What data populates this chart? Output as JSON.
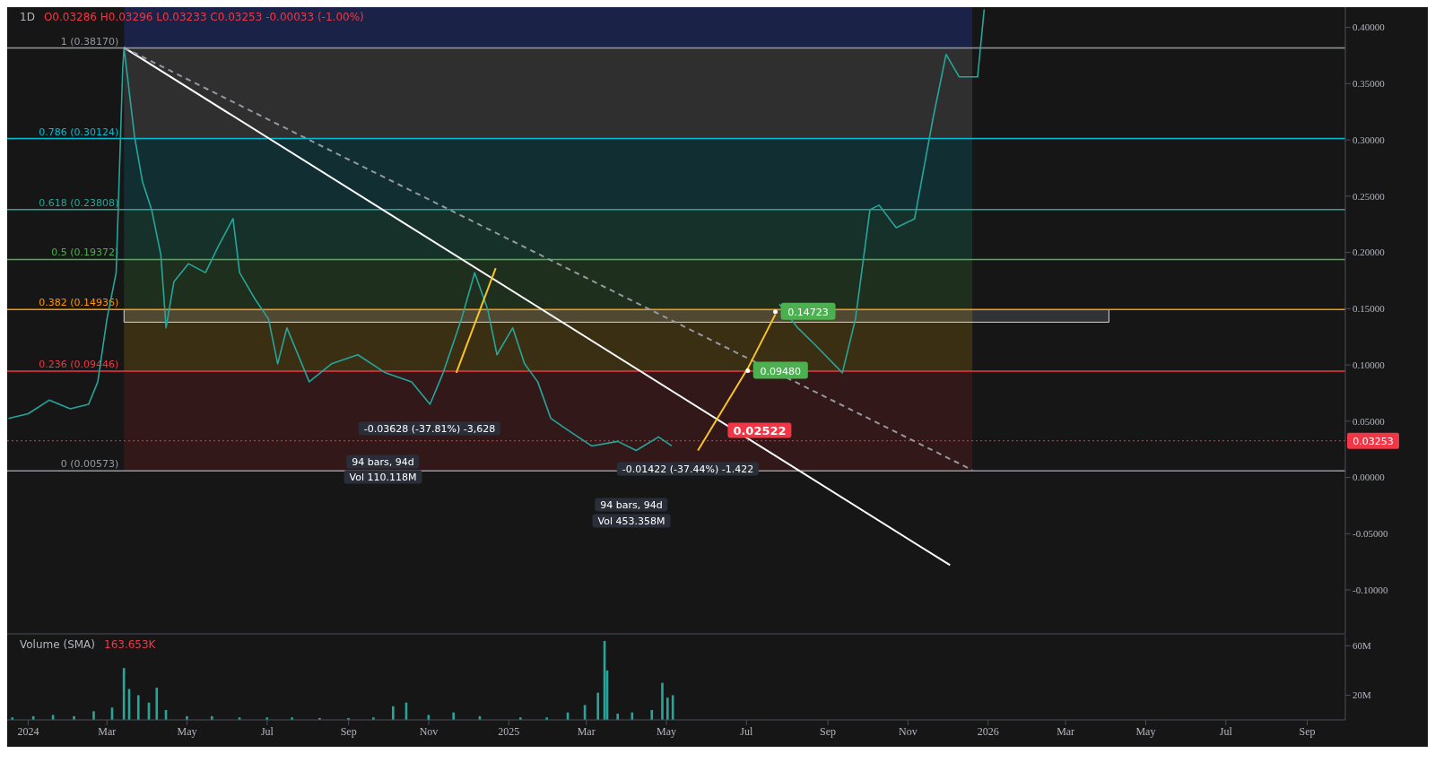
{
  "chart_data": [
    {
      "type": "line",
      "title": "1D",
      "subtitle": "O0.03286 H0.03296 L0.03233 C0.03253 -0.00033 (-1.00%)",
      "xlim": [
        "2023-12-16",
        "2026-09-30"
      ],
      "ylim": [
        -0.139,
        0.418
      ],
      "yticks": [
        {
          "value": -0.1,
          "label": "-0.10000"
        },
        {
          "value": -0.05,
          "label": "-0.05000"
        },
        {
          "value": 0,
          "label": "0.00000"
        },
        {
          "value": 0.05,
          "label": "0.05000"
        },
        {
          "value": 0.1,
          "label": "0.10000"
        },
        {
          "value": 0.15,
          "label": "0.15000"
        },
        {
          "value": 0.2,
          "label": "0.20000"
        },
        {
          "value": 0.25,
          "label": "0.25000"
        },
        {
          "value": 0.3,
          "label": "0.30000"
        },
        {
          "value": 0.35,
          "label": "0.35000"
        },
        {
          "value": 0.4,
          "label": "0.40000"
        }
      ],
      "tick_labels": "y",
      "grid": false,
      "legend": false,
      "marker": "none",
      "series": [
        {
          "color": "#26a69a",
          "x": [
            "2023-12-17",
            "2024-01-01",
            "2024-01-17",
            "2024-02-02",
            "2024-02-16",
            "2024-02-23",
            "2024-03-01",
            "2024-03-08",
            "2024-03-13",
            "2024-03-14",
            "2024-03-22",
            "2024-03-28",
            "2024-04-04",
            "2024-04-11",
            "2024-04-15",
            "2024-04-21",
            "2024-05-02",
            "2024-05-15",
            "2024-05-25",
            "2024-06-05",
            "2024-06-10",
            "2024-06-22",
            "2024-07-02",
            "2024-07-09",
            "2024-07-16",
            "2024-08-02",
            "2024-08-19",
            "2024-09-08",
            "2024-09-29",
            "2024-10-19",
            "2024-11-02",
            "2024-11-12",
            "2024-11-26",
            "2024-12-06",
            "2024-12-16",
            "2024-12-23",
            "2025-01-04",
            "2025-01-13",
            "2025-01-23",
            "2025-02-02",
            "2025-02-12",
            "2025-03-05",
            "2025-03-25",
            "2025-04-08",
            "2025-04-25",
            "2025-05-05",
            "2025-06-15",
            "2025-07-26",
            "2025-08-09",
            "2025-08-23",
            "2025-09-12",
            "2025-09-22",
            "2025-10-03",
            "2025-10-10",
            "2025-10-23",
            "2025-11-06",
            "2025-11-20",
            "2025-11-30",
            "2025-12-10",
            "2025-12-24",
            "2025-12-29"
          ],
          "values": [
            0.0525,
            0.0566,
            0.0687,
            0.061,
            0.065,
            0.085,
            0.141,
            0.182,
            0.364,
            0.382,
            0.303,
            0.263,
            0.238,
            0.198,
            0.133,
            0.174,
            0.19,
            0.182,
            0.206,
            0.23,
            0.182,
            0.158,
            0.141,
            0.101,
            0.133,
            0.085,
            0.101,
            0.109,
            0.093,
            0.085,
            0.065,
            0.093,
            0.141,
            0.182,
            0.149,
            0.109,
            0.133,
            0.101,
            0.085,
            0.0525,
            0.0444,
            0.028,
            0.032,
            0.024,
            0.036,
            0.028,
            null,
            0.154,
            0.133,
            0.117,
            0.093,
            0.141,
            0.238,
            0.242,
            0.222,
            0.23,
            0.319,
            0.376,
            0.356,
            0.356,
            0.416
          ]
        },
        {
          "color": "#ffffff",
          "x": [
            "2024-03-14",
            "2025-12-03"
          ],
          "values": [
            0.382,
            -0.078
          ]
        },
        {
          "color": "#9598a1",
          "line_style": "dashed",
          "x": [
            "2024-03-14",
            "2025-12-20"
          ],
          "values": [
            0.382,
            0.0065
          ]
        },
        {
          "color": "#f7c325",
          "x": [
            "2024-11-22",
            "2024-12-22"
          ],
          "values": [
            0.093,
            0.186
          ]
        },
        {
          "color": "#f7c325",
          "x": [
            "2025-05-25",
            "2025-07-02",
            "2025-07-23"
          ],
          "values": [
            0.024,
            0.097,
            0.145
          ]
        }
      ],
      "bands": [
        {
          "axis": "y",
          "from": 0.3817,
          "to": 0.418,
          "color": "#1c2a5c"
        },
        {
          "axis": "y",
          "from": 0.30124,
          "to": 0.3817,
          "color": "#3a3a3a"
        },
        {
          "axis": "y",
          "from": 0.23808,
          "to": 0.30124,
          "color": "#0f3a40"
        },
        {
          "axis": "y",
          "from": 0.19372,
          "to": 0.23808,
          "color": "#153d33"
        },
        {
          "axis": "y",
          "from": 0.14936,
          "to": 0.19372,
          "color": "#243a22"
        },
        {
          "axis": "y",
          "from": 0.09446,
          "to": 0.14936,
          "color": "#4a3a12"
        },
        {
          "axis": "y",
          "from": 0.00573,
          "to": 0.09446,
          "color": "#40191c"
        },
        {
          "axis": "y",
          "from": 0.138,
          "to": 0.149,
          "color": "#d1d4dc"
        }
      ],
      "ref_lines": [
        {
          "axis": "y",
          "value": 0.3817,
          "label": "1 (0.38170)",
          "color": "#9598a1"
        },
        {
          "axis": "y",
          "value": 0.30124,
          "label": "0.786 (0.30124)",
          "color": "#00bcd4"
        },
        {
          "axis": "y",
          "value": 0.23808,
          "label": "0.618 (0.23808)",
          "color": "#26a69a"
        },
        {
          "axis": "y",
          "value": 0.19372,
          "label": "0.5 (0.19372)",
          "color": "#4caf50"
        },
        {
          "axis": "y",
          "value": 0.14936,
          "label": "0.382 (0.14936)",
          "color": "#ff9800"
        },
        {
          "axis": "y",
          "value": 0.09446,
          "label": "0.236 (0.09446)",
          "color": "#f23645"
        },
        {
          "axis": "y",
          "value": 0.00573,
          "label": "0 (0.00573)",
          "color": "#9598a1"
        },
        {
          "axis": "y",
          "value": 0.03253,
          "label": "0.03253",
          "color": "#f23645",
          "line_style": "dotted"
        }
      ],
      "annotations": [
        {
          "text": "0.14723",
          "x": "2025-07-23",
          "y": 0.14723
        },
        {
          "text": "0.09480",
          "x": "2025-07-02",
          "y": 0.0948
        },
        "0.02522",
        "-0.03628 (-37.81%) -3,628",
        "94 bars, 94d",
        "Vol 110.118M",
        "-0.01422 (-37.44%) -1.422",
        "94 bars, 94d",
        "Vol 453.358M"
      ]
    },
    {
      "type": "bar",
      "title": "Volume (SMA)",
      "annotations": [
        "163.653K"
      ],
      "xlim": [
        "2023-12-16",
        "2026-09-30"
      ],
      "ylim": [
        0,
        69000000
      ],
      "yticks": [
        {
          "value": 20000000,
          "label": "20M"
        },
        {
          "value": 60000000,
          "label": "60M"
        }
      ],
      "xticks": [
        {
          "value": "2024-01-01",
          "label": "2024"
        },
        {
          "value": "2024-03-01",
          "label": "Mar"
        },
        {
          "value": "2024-05-01",
          "label": "May"
        },
        {
          "value": "2024-07-01",
          "label": "Jul"
        },
        {
          "value": "2024-09-01",
          "label": "Sep"
        },
        {
          "value": "2024-11-01",
          "label": "Nov"
        },
        {
          "value": "2025-01-01",
          "label": "2025"
        },
        {
          "value": "2025-03-01",
          "label": "Mar"
        },
        {
          "value": "2025-05-01",
          "label": "May"
        },
        {
          "value": "2025-07-01",
          "label": "Jul"
        },
        {
          "value": "2025-09-01",
          "label": "Sep"
        },
        {
          "value": "2025-11-01",
          "label": "Nov"
        },
        {
          "value": "2026-01-01",
          "label": "2026"
        },
        {
          "value": "2026-03-01",
          "label": "Mar"
        },
        {
          "value": "2026-05-01",
          "label": "May"
        },
        {
          "value": "2026-07-01",
          "label": "Jul"
        },
        {
          "value": "2026-09-01",
          "label": "Sep"
        }
      ],
      "grid": false,
      "legend": false,
      "series": [
        {
          "color": "#26a69a",
          "x": [
            "2023-12-20",
            "2024-01-05",
            "2024-01-20",
            "2024-02-05",
            "2024-02-20",
            "2024-03-05",
            "2024-03-14",
            "2024-03-18",
            "2024-03-25",
            "2024-04-02",
            "2024-04-08",
            "2024-04-15",
            "2024-05-01",
            "2024-05-20",
            "2024-06-10",
            "2024-07-01",
            "2024-07-20",
            "2024-08-10",
            "2024-09-01",
            "2024-09-20",
            "2024-10-05",
            "2024-10-15",
            "2024-11-01",
            "2024-11-20",
            "2024-12-10",
            "2025-01-10",
            "2025-01-30",
            "2025-02-15",
            "2025-02-28",
            "2025-03-10",
            "2025-03-15",
            "2025-03-17",
            "2025-03-25",
            "2025-04-05",
            "2025-04-20",
            "2025-04-28",
            "2025-05-02",
            "2025-05-06"
          ],
          "values": [
            2000000,
            3000000,
            4000000,
            3000000,
            7000000,
            10000000,
            42000000,
            25000000,
            20000000,
            14000000,
            26000000,
            8000000,
            3000000,
            3000000,
            2000000,
            2000000,
            2000000,
            1500000,
            1500000,
            2000000,
            11000000,
            14000000,
            4000000,
            6000000,
            3000000,
            2000000,
            2000000,
            6000000,
            12000000,
            22000000,
            64000000,
            40000000,
            5000000,
            6000000,
            8000000,
            30000000,
            18000000,
            20000000
          ]
        }
      ]
    }
  ]
}
